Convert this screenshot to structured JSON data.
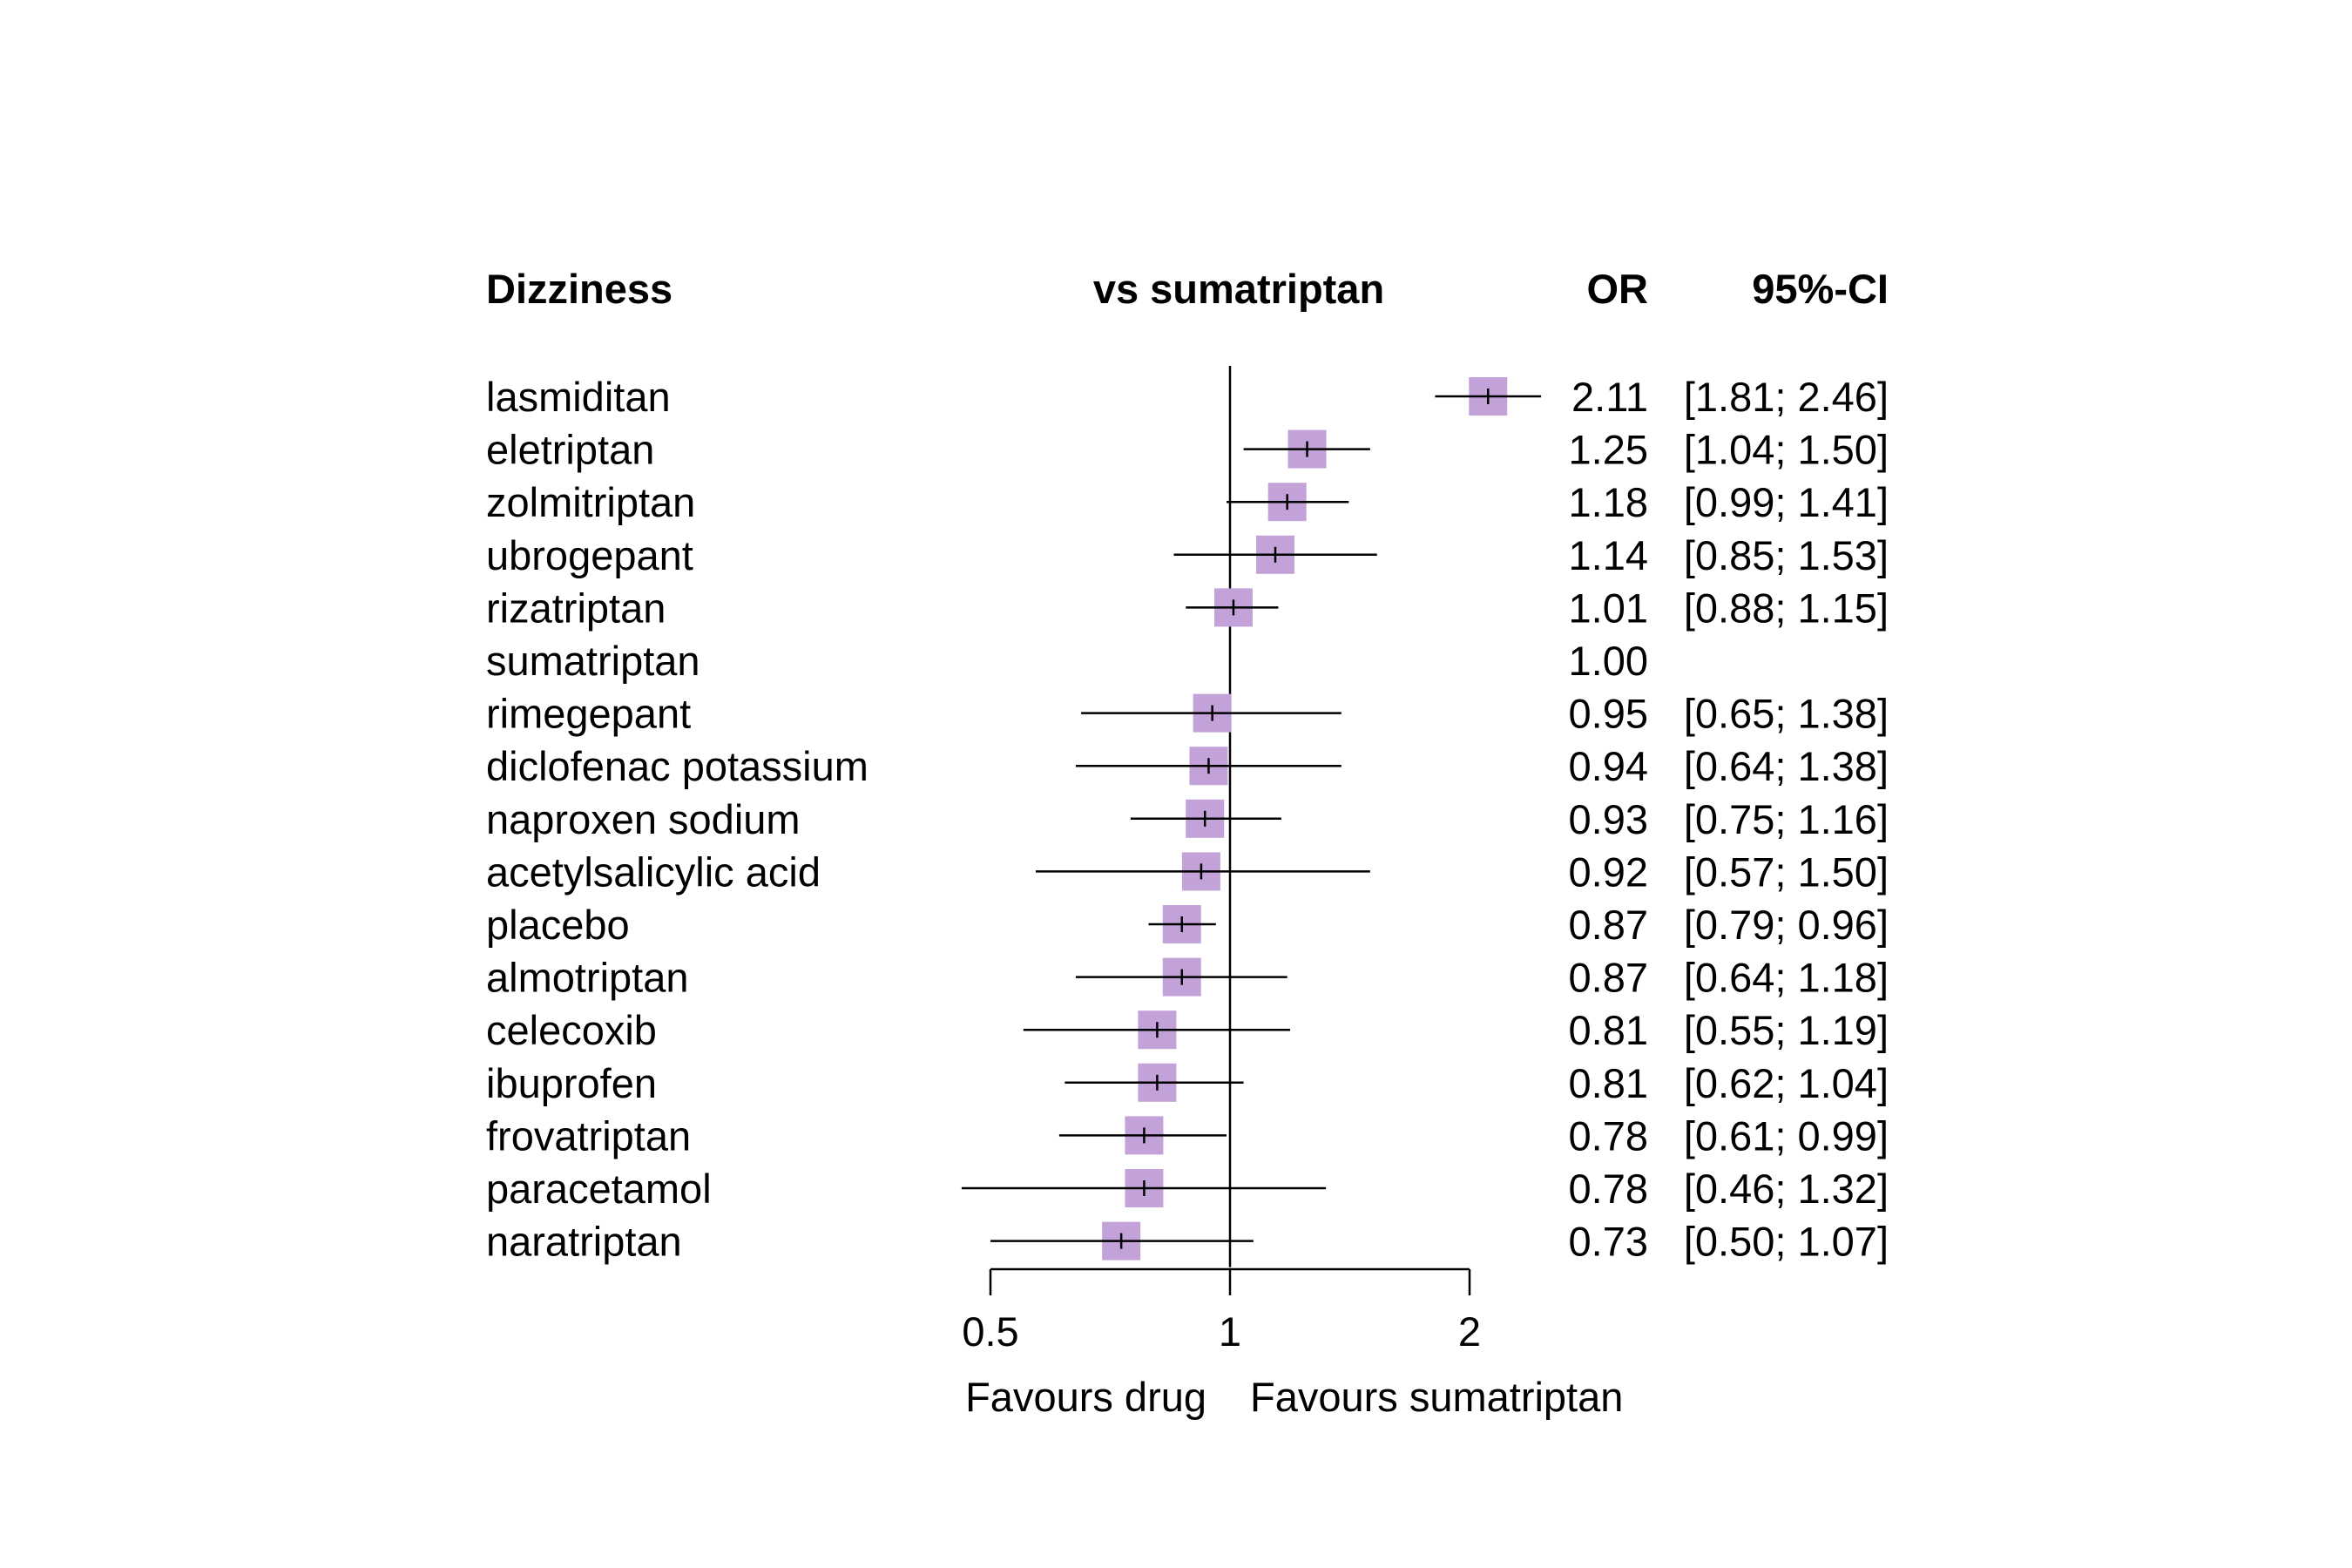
{
  "chart_data": {
    "type": "forest",
    "headers": {
      "outcome": "Dizziness",
      "comparison": "vs sumatriptan",
      "estimate": "OR",
      "ci": "95%-CI"
    },
    "scale": "log",
    "reference_value": 1,
    "xlim": [
      0.5,
      2
    ],
    "x_ticks": [
      {
        "value": 0.5,
        "label": "0.5"
      },
      {
        "value": 1,
        "label": "1"
      },
      {
        "value": 2,
        "label": "2"
      }
    ],
    "favours_left": "Favours drug",
    "favours_right": "Favours sumatriptan",
    "marker_color": "#c3a2d9",
    "line_color": "#000000",
    "rows": [
      {
        "name": "lasmiditan",
        "or": 2.11,
        "lo": 1.81,
        "hi": 2.46,
        "or_text": "2.11",
        "ci_text": "[1.81; 2.46]"
      },
      {
        "name": "eletriptan",
        "or": 1.25,
        "lo": 1.04,
        "hi": 1.5,
        "or_text": "1.25",
        "ci_text": "[1.04; 1.50]"
      },
      {
        "name": "zolmitriptan",
        "or": 1.18,
        "lo": 0.99,
        "hi": 1.41,
        "or_text": "1.18",
        "ci_text": "[0.99; 1.41]"
      },
      {
        "name": "ubrogepant",
        "or": 1.14,
        "lo": 0.85,
        "hi": 1.53,
        "or_text": "1.14",
        "ci_text": "[0.85; 1.53]"
      },
      {
        "name": "rizatriptan",
        "or": 1.01,
        "lo": 0.88,
        "hi": 1.15,
        "or_text": "1.01",
        "ci_text": "[0.88; 1.15]"
      },
      {
        "name": "sumatriptan",
        "or": 1.0,
        "lo": null,
        "hi": null,
        "or_text": "1.00",
        "ci_text": ""
      },
      {
        "name": "rimegepant",
        "or": 0.95,
        "lo": 0.65,
        "hi": 1.38,
        "or_text": "0.95",
        "ci_text": "[0.65; 1.38]"
      },
      {
        "name": "diclofenac potassium",
        "or": 0.94,
        "lo": 0.64,
        "hi": 1.38,
        "or_text": "0.94",
        "ci_text": "[0.64; 1.38]"
      },
      {
        "name": "naproxen sodium",
        "or": 0.93,
        "lo": 0.75,
        "hi": 1.16,
        "or_text": "0.93",
        "ci_text": "[0.75; 1.16]"
      },
      {
        "name": "acetylsalicylic acid",
        "or": 0.92,
        "lo": 0.57,
        "hi": 1.5,
        "or_text": "0.92",
        "ci_text": "[0.57; 1.50]"
      },
      {
        "name": "placebo",
        "or": 0.87,
        "lo": 0.79,
        "hi": 0.96,
        "or_text": "0.87",
        "ci_text": "[0.79; 0.96]"
      },
      {
        "name": "almotriptan",
        "or": 0.87,
        "lo": 0.64,
        "hi": 1.18,
        "or_text": "0.87",
        "ci_text": "[0.64; 1.18]"
      },
      {
        "name": "celecoxib",
        "or": 0.81,
        "lo": 0.55,
        "hi": 1.19,
        "or_text": "0.81",
        "ci_text": "[0.55; 1.19]"
      },
      {
        "name": "ibuprofen",
        "or": 0.81,
        "lo": 0.62,
        "hi": 1.04,
        "or_text": "0.81",
        "ci_text": "[0.62; 1.04]"
      },
      {
        "name": "frovatriptan",
        "or": 0.78,
        "lo": 0.61,
        "hi": 0.99,
        "or_text": "0.78",
        "ci_text": "[0.61; 0.99]"
      },
      {
        "name": "paracetamol",
        "or": 0.78,
        "lo": 0.46,
        "hi": 1.32,
        "or_text": "0.78",
        "ci_text": "[0.46; 1.32]"
      },
      {
        "name": "naratriptan",
        "or": 0.73,
        "lo": 0.5,
        "hi": 1.07,
        "or_text": "0.73",
        "ci_text": "[0.50; 1.07]"
      }
    ]
  }
}
